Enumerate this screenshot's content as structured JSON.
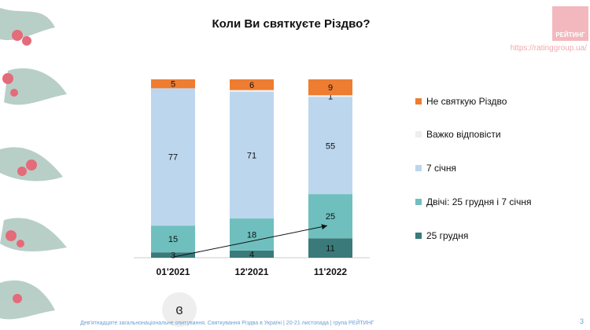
{
  "title": "Коли Ви святкуєте Різдво?",
  "logo_text": "РЕЙТИНГ",
  "site_url": "https://ratinggroup.ua/",
  "footer_text": "Дев'ятнадцяте загальнонаціональне опитування. Святкування Різдва в Україні | 20-21 листопада | група РЕЙТИНГ",
  "page_number": "3",
  "round_icon_glyph": "ɞ",
  "colors": {
    "dec25": "#3a7a7a",
    "both": "#6fbfbf",
    "jan7": "#bcd6ee",
    "hard": "#eeeeee",
    "not": "#ee7d31"
  },
  "chart_data": {
    "type": "bar",
    "stacked": true,
    "categories": [
      "01'2021",
      "12'2021",
      "11'2022"
    ],
    "ylim": [
      0,
      100
    ],
    "series": [
      {
        "name": "25 грудня",
        "key": "dec25",
        "values": [
          3,
          4,
          11
        ]
      },
      {
        "name": "Двічі: 25 грудня і 7 січня",
        "key": "both",
        "values": [
          15,
          18,
          25
        ]
      },
      {
        "name": "7 січня",
        "key": "jan7",
        "values": [
          77,
          71,
          55
        ]
      },
      {
        "name": "Важко відповісти",
        "key": "hard",
        "values": [
          0,
          1,
          1
        ]
      },
      {
        "name": "Не святкую Різдво",
        "key": "not",
        "values": [
          5,
          6,
          9
        ]
      }
    ],
    "bar_labels": [
      [
        "3",
        "15",
        "77",
        "",
        "5"
      ],
      [
        "4",
        "18",
        "71",
        "",
        "6"
      ],
      [
        "11",
        "25",
        "55",
        "1",
        "9"
      ]
    ],
    "legend_order": [
      "not",
      "hard",
      "jan7",
      "both",
      "dec25"
    ],
    "trend_arrow": {
      "from_category": 0,
      "to_category": 2
    }
  }
}
